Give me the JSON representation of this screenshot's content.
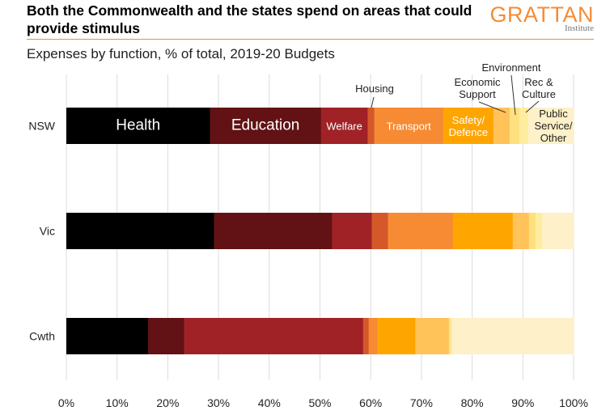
{
  "header": {
    "title": "Both the Commonwealth and the states spend on areas that could provide stimulus",
    "logo_main": "GRATTAN",
    "logo_sub": "Institute"
  },
  "chart_data": {
    "type": "bar",
    "stacked": true,
    "orientation": "horizontal",
    "title": "Both the Commonwealth and the states spend on areas that could provide stimulus",
    "subtitle": "Expenses by function, % of total, 2019-20 Budgets",
    "xlabel": "",
    "ylabel": "",
    "xlim": [
      0,
      100
    ],
    "x_ticks": [
      "0%",
      "10%",
      "20%",
      "30%",
      "40%",
      "50%",
      "60%",
      "70%",
      "80%",
      "90%",
      "100%"
    ],
    "categories": [
      "NSW",
      "Vic",
      "Cwth"
    ],
    "series": [
      {
        "name": "Health",
        "color": "#000000",
        "text_color": "#ffffff",
        "values": [
          28.3,
          29.1,
          16.1
        ]
      },
      {
        "name": "Education",
        "color": "#621214",
        "text_color": "#ffffff",
        "values": [
          21.9,
          23.3,
          7.1
        ]
      },
      {
        "name": "Welfare",
        "color": "#A02226",
        "text_color": "#ffffff",
        "values": [
          9.2,
          7.8,
          35.3
        ]
      },
      {
        "name": "Housing",
        "color": "#D4582A",
        "values": [
          1.3,
          3.2,
          1.1
        ]
      },
      {
        "name": "Transport",
        "color": "#F68B33",
        "text_color": "#ffffff",
        "values": [
          13.6,
          12.8,
          1.7
        ]
      },
      {
        "name": "Safety/ Defence",
        "color": "#FFA500",
        "text_color": "#ffffff",
        "values": [
          9.9,
          11.8,
          7.5
        ]
      },
      {
        "name": "Economic Support",
        "color": "#FFC35A",
        "values": [
          3.2,
          3.2,
          6.6
        ]
      },
      {
        "name": "Environment",
        "color": "#FFE07F",
        "values": [
          1.9,
          1.3,
          0.3
        ]
      },
      {
        "name": "Rec & Culture",
        "color": "#FFEC9E",
        "values": [
          1.7,
          1.3,
          0.3
        ]
      },
      {
        "name": "Public Service/ Other",
        "color": "#FEF0C8",
        "values": [
          9.0,
          6.2,
          24.0
        ]
      }
    ]
  }
}
